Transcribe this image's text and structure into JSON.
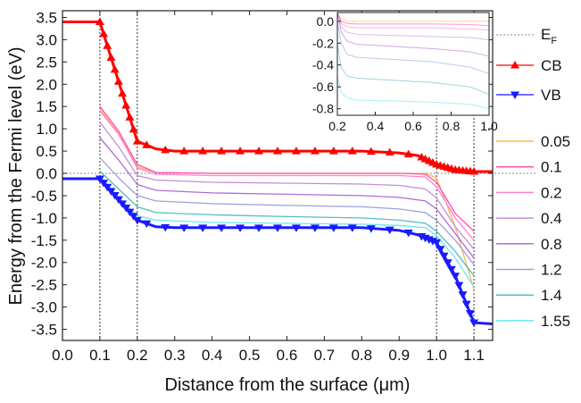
{
  "chart_data": {
    "type": "line",
    "xlabel": "Distance from the surface (μm)",
    "ylabel": "Energy from the Fermi level (eV)",
    "xlim": [
      0.0,
      1.15
    ],
    "ylim": [
      -3.75,
      3.65
    ],
    "xticks": [
      "0.0",
      "0.1",
      "0.2",
      "0.3",
      "0.4",
      "0.5",
      "0.6",
      "0.7",
      "0.8",
      "0.9",
      "1.0",
      "1.1"
    ],
    "yticks": [
      "3.5",
      "3.0",
      "2.5",
      "2.0",
      "1.5",
      "1.0",
      "0.5",
      "0.0",
      "-0.5",
      "-1.0",
      "-1.5",
      "-2.0",
      "-2.5",
      "-3.0",
      "-3.5"
    ],
    "vlines": [
      0.1,
      0.2,
      1.0,
      1.1
    ],
    "fermi_level": 0.0,
    "legend": {
      "ef": {
        "label": "E",
        "sub": "F"
      },
      "cb": "CB",
      "vb": "VB",
      "params": [
        "0.05",
        "0.1",
        "0.2",
        "0.4",
        "0.8",
        "1.2",
        "1.4",
        "1.55"
      ]
    },
    "colors": {
      "ef": "#888888",
      "cb": "#ff0000",
      "vb": "#1a1aff",
      "params": [
        "#ffb84d",
        "#ff4fb0",
        "#ff80d0",
        "#c58fd8",
        "#b06bd8",
        "#9f9fe0",
        "#55bcc8",
        "#66e8ee"
      ]
    },
    "series": [
      {
        "name": "CB",
        "x": [
          0.0,
          0.1,
          0.2,
          0.25,
          0.3,
          0.4,
          0.5,
          0.6,
          0.7,
          0.8,
          0.9,
          0.95,
          1.0,
          1.05,
          1.1,
          1.15
        ],
        "y": [
          3.4,
          3.4,
          0.72,
          0.55,
          0.5,
          0.5,
          0.5,
          0.5,
          0.5,
          0.5,
          0.46,
          0.4,
          0.2,
          0.08,
          0.04,
          0.04
        ]
      },
      {
        "name": "VB",
        "x": [
          0.0,
          0.1,
          0.2,
          0.25,
          0.3,
          0.4,
          0.5,
          0.6,
          0.7,
          0.8,
          0.9,
          0.95,
          1.0,
          1.05,
          1.1,
          1.15
        ],
        "y": [
          -0.12,
          -0.12,
          -1.05,
          -1.2,
          -1.22,
          -1.22,
          -1.22,
          -1.22,
          -1.22,
          -1.22,
          -1.28,
          -1.38,
          -1.55,
          -2.3,
          -3.35,
          -3.38
        ]
      },
      {
        "name": "0.05",
        "x": [
          0.1,
          0.15,
          0.2,
          0.25,
          0.4,
          0.6,
          0.8,
          0.9,
          0.97,
          1.0,
          1.05,
          1.1
        ],
        "y": [
          1.45,
          0.9,
          0.15,
          0.02,
          0.0,
          0.0,
          0.0,
          0.0,
          0.0,
          -0.1,
          -1.2,
          -2.6
        ]
      },
      {
        "name": "0.1",
        "x": [
          0.1,
          0.15,
          0.2,
          0.25,
          0.4,
          0.6,
          0.8,
          0.9,
          0.97,
          1.0,
          1.05,
          1.1
        ],
        "y": [
          1.5,
          0.95,
          0.2,
          0.02,
          0.0,
          0.0,
          0.0,
          0.0,
          -0.02,
          -0.2,
          -0.9,
          -1.3
        ]
      },
      {
        "name": "0.2",
        "x": [
          0.1,
          0.15,
          0.2,
          0.25,
          0.4,
          0.6,
          0.8,
          0.9,
          0.97,
          1.0,
          1.05,
          1.1
        ],
        "y": [
          1.4,
          0.88,
          0.12,
          -0.02,
          -0.05,
          -0.05,
          -0.05,
          -0.05,
          -0.08,
          -0.3,
          -1.0,
          -1.5
        ]
      },
      {
        "name": "0.4",
        "x": [
          0.1,
          0.15,
          0.2,
          0.25,
          0.4,
          0.6,
          0.8,
          0.9,
          0.97,
          1.0,
          1.05,
          1.1
        ],
        "y": [
          1.15,
          0.6,
          -0.05,
          -0.15,
          -0.2,
          -0.22,
          -0.24,
          -0.27,
          -0.35,
          -0.55,
          -1.2,
          -1.7
        ]
      },
      {
        "name": "0.8",
        "x": [
          0.1,
          0.15,
          0.2,
          0.25,
          0.4,
          0.6,
          0.8,
          0.9,
          0.97,
          1.0,
          1.05,
          1.1
        ],
        "y": [
          0.8,
          0.3,
          -0.25,
          -0.38,
          -0.44,
          -0.47,
          -0.5,
          -0.54,
          -0.62,
          -0.8,
          -1.35,
          -1.9
        ]
      },
      {
        "name": "1.2",
        "x": [
          0.1,
          0.15,
          0.2,
          0.25,
          0.4,
          0.6,
          0.8,
          0.9,
          0.97,
          1.0,
          1.05,
          1.1
        ],
        "y": [
          0.35,
          -0.1,
          -0.5,
          -0.62,
          -0.68,
          -0.72,
          -0.75,
          -0.8,
          -0.88,
          -1.05,
          -1.5,
          -2.05
        ]
      },
      {
        "name": "1.4",
        "x": [
          0.1,
          0.15,
          0.2,
          0.25,
          0.4,
          0.6,
          0.8,
          0.9,
          0.97,
          1.0,
          1.05,
          1.1
        ],
        "y": [
          0.05,
          -0.35,
          -0.75,
          -0.88,
          -0.93,
          -0.97,
          -1.0,
          -1.05,
          -1.12,
          -1.3,
          -1.75,
          -2.3
        ]
      },
      {
        "name": "1.55",
        "x": [
          0.1,
          0.15,
          0.2,
          0.25,
          0.4,
          0.6,
          0.8,
          0.9,
          0.97,
          1.0,
          1.05,
          1.1
        ],
        "y": [
          -0.05,
          -0.55,
          -0.95,
          -1.05,
          -1.1,
          -1.12,
          -1.14,
          -1.17,
          -1.22,
          -1.4,
          -1.9,
          -2.55
        ]
      }
    ],
    "inset": {
      "xlim": [
        0.2,
        1.0
      ],
      "ylim": [
        -0.86,
        0.08
      ],
      "xticks": [
        "0.2",
        "0.4",
        "0.6",
        "0.8",
        "1.0"
      ],
      "yticks": [
        "0.0",
        "-0.2",
        "-0.4",
        "-0.6",
        "-0.8"
      ],
      "series": [
        {
          "name": "0.05",
          "x": [
            0.2,
            0.22,
            0.25,
            0.3,
            0.5,
            0.7,
            0.9,
            1.0
          ],
          "y": [
            0.08,
            0.02,
            0.005,
            0.0,
            0.0,
            0.0,
            0.0,
            0.0
          ]
        },
        {
          "name": "0.1",
          "x": [
            0.2,
            0.22,
            0.25,
            0.3,
            0.5,
            0.7,
            0.9,
            1.0
          ],
          "y": [
            0.08,
            0.0,
            -0.02,
            -0.025,
            -0.025,
            -0.025,
            -0.03,
            -0.04
          ]
        },
        {
          "name": "0.2",
          "x": [
            0.2,
            0.22,
            0.25,
            0.3,
            0.5,
            0.7,
            0.9,
            1.0
          ],
          "y": [
            0.08,
            -0.02,
            -0.05,
            -0.06,
            -0.06,
            -0.06,
            -0.07,
            -0.08
          ]
        },
        {
          "name": "0.4",
          "x": [
            0.2,
            0.22,
            0.25,
            0.3,
            0.5,
            0.7,
            0.9,
            1.0
          ],
          "y": [
            0.08,
            -0.05,
            -0.1,
            -0.12,
            -0.13,
            -0.14,
            -0.15,
            -0.17
          ]
        },
        {
          "name": "0.8",
          "x": [
            0.2,
            0.22,
            0.25,
            0.3,
            0.5,
            0.7,
            0.9,
            1.0
          ],
          "y": [
            0.08,
            -0.1,
            -0.18,
            -0.21,
            -0.23,
            -0.25,
            -0.28,
            -0.32
          ]
        },
        {
          "name": "1.2",
          "x": [
            0.2,
            0.22,
            0.25,
            0.3,
            0.5,
            0.7,
            0.9,
            1.0
          ],
          "y": [
            0.0,
            -0.2,
            -0.3,
            -0.33,
            -0.35,
            -0.37,
            -0.42,
            -0.48
          ]
        },
        {
          "name": "1.4",
          "x": [
            0.2,
            0.22,
            0.25,
            0.3,
            0.5,
            0.7,
            0.9,
            1.0
          ],
          "y": [
            -0.2,
            -0.42,
            -0.5,
            -0.52,
            -0.54,
            -0.56,
            -0.6,
            -0.67
          ]
        },
        {
          "name": "1.55",
          "x": [
            0.2,
            0.22,
            0.25,
            0.3,
            0.5,
            0.7,
            0.9,
            1.0
          ],
          "y": [
            -0.5,
            -0.65,
            -0.7,
            -0.72,
            -0.73,
            -0.74,
            -0.76,
            -0.8
          ]
        }
      ]
    }
  }
}
